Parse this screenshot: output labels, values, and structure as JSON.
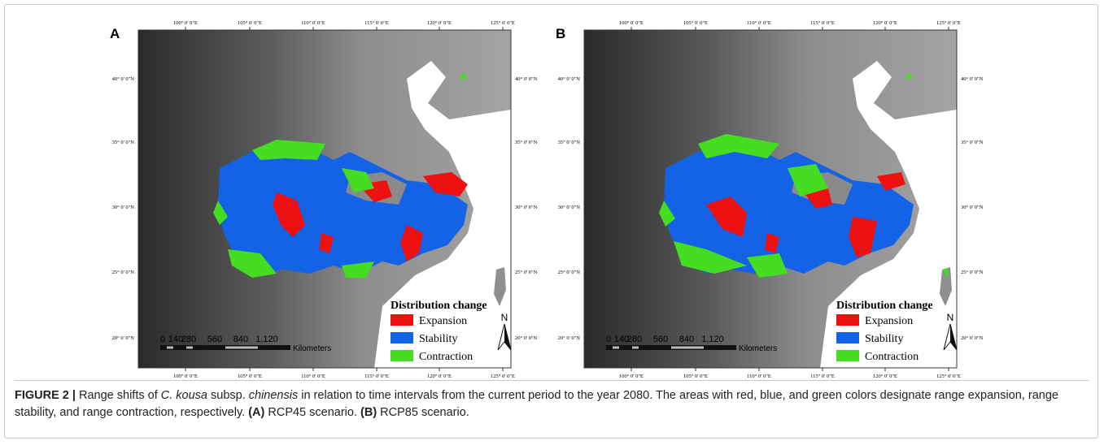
{
  "panels": [
    {
      "label": "A",
      "lon_labels": [
        "100° 0' 0\"E",
        "105° 0' 0\"E",
        "110° 0' 0\"E",
        "115° 0' 0\"E",
        "120° 0' 0\"E",
        "125° 0' 0\"E"
      ],
      "lat_labels": [
        "40° 0' 0\"N",
        "35° 0' 0\"N",
        "30° 0' 0\"N",
        "25° 0' 0\"N",
        "20° 0' 0\"N"
      ],
      "legend": {
        "title": "Distribution change",
        "items": [
          "Expansion",
          "Stability",
          "Contraction"
        ]
      },
      "scale": {
        "labels": [
          "0",
          "140",
          "280",
          "560",
          "840",
          "1,120"
        ],
        "unit": "Kilometers"
      },
      "north": "N"
    },
    {
      "label": "B",
      "lon_labels": [
        "100° 0' 0\"E",
        "105° 0' 0\"E",
        "110° 0' 0\"E",
        "115° 0' 0\"E",
        "120° 0' 0\"E",
        "125° 0' 0\"E"
      ],
      "lat_labels": [
        "40° 0' 0\"N",
        "35° 0' 0\"N",
        "30° 0' 0\"N",
        "25° 0' 0\"N",
        "20° 0' 0\"N"
      ],
      "legend": {
        "title": "Distribution change",
        "items": [
          "Expansion",
          "Stability",
          "Contraction"
        ]
      },
      "scale": {
        "labels": [
          "0",
          "140",
          "280",
          "560",
          "840",
          "1,120"
        ],
        "unit": "Kilometers"
      },
      "north": "N"
    }
  ],
  "caption": {
    "label": "FIGURE 2 |",
    "parts": [
      "Range shifts of ",
      "C. kousa",
      " subsp. ",
      "chinensis",
      " in relation to time intervals from the current period to the year 2080. The areas with red, blue, and green colors designate range expansion, range stability, and range contraction, respectively. ",
      "(A)",
      " RCP45 scenario. ",
      "(B)",
      " RCP85 scenario."
    ]
  }
}
